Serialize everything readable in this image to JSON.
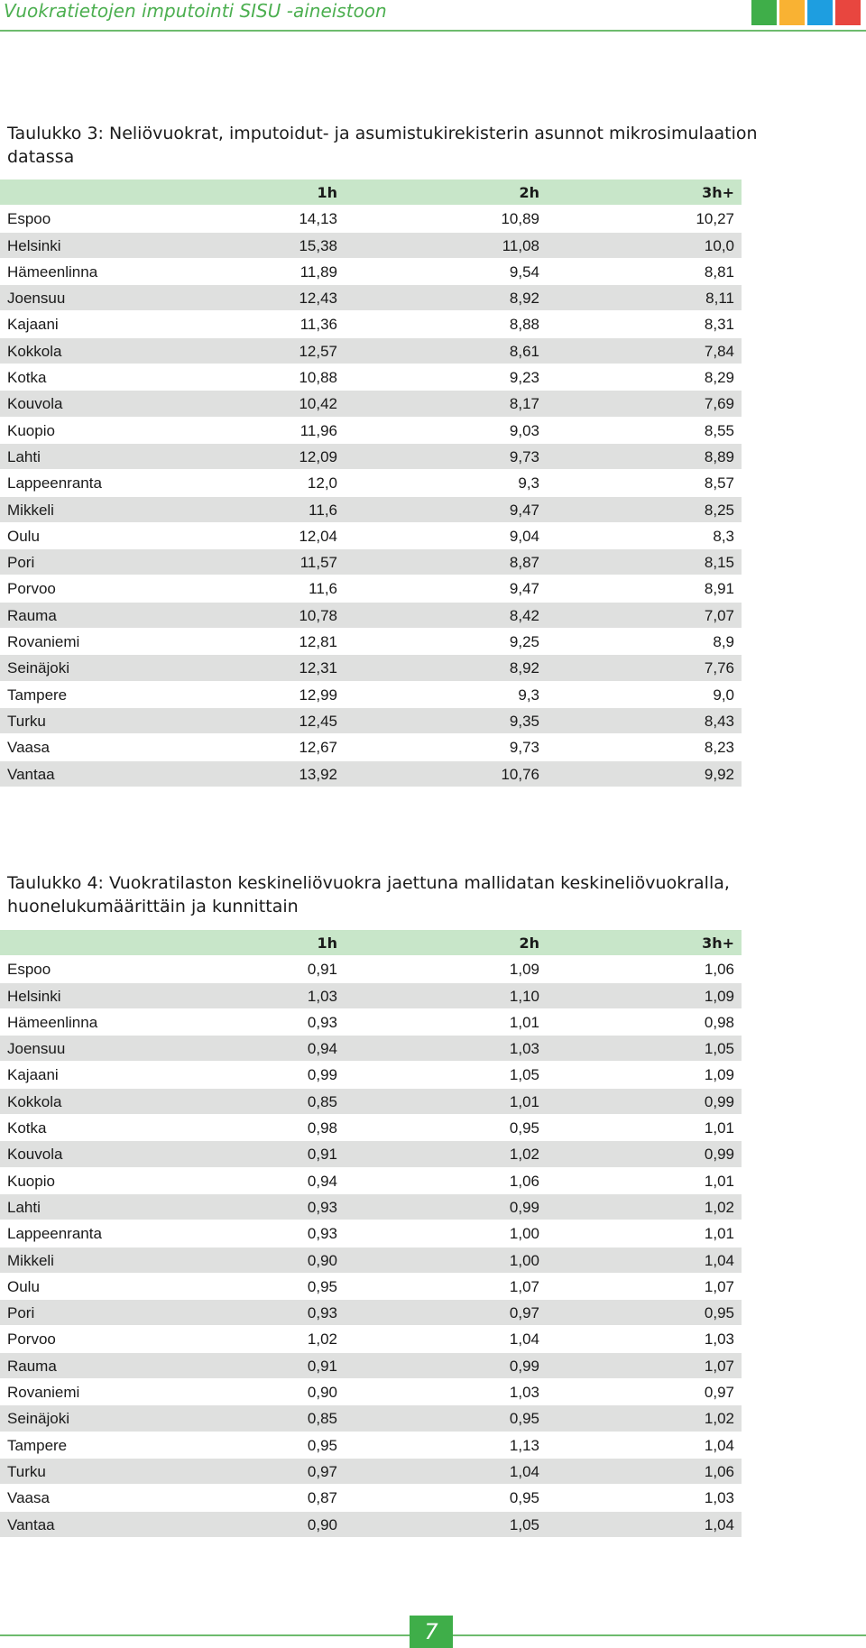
{
  "header": {
    "title": "Vuokratietojen imputointi SISU -aineistoon",
    "colors": [
      "#3fae49",
      "#f9b233",
      "#1e9ee0",
      "#e8463f"
    ]
  },
  "table3": {
    "title": "Taulukko 3: Neliövuokrat, imputoidut- ja asumistukirekisterin asunnot mikrosimulaation datassa",
    "columns": [
      "",
      "1h",
      "2h",
      "3h+"
    ],
    "rows": [
      [
        "Espoo",
        "14,13",
        "10,89",
        "10,27"
      ],
      [
        "Helsinki",
        "15,38",
        "11,08",
        "10,0"
      ],
      [
        "Hämeenlinna",
        "11,89",
        "9,54",
        "8,81"
      ],
      [
        "Joensuu",
        "12,43",
        "8,92",
        "8,11"
      ],
      [
        "Kajaani",
        "11,36",
        "8,88",
        "8,31"
      ],
      [
        "Kokkola",
        "12,57",
        "8,61",
        "7,84"
      ],
      [
        "Kotka",
        "10,88",
        "9,23",
        "8,29"
      ],
      [
        "Kouvola",
        "10,42",
        "8,17",
        "7,69"
      ],
      [
        "Kuopio",
        "11,96",
        "9,03",
        "8,55"
      ],
      [
        "Lahti",
        "12,09",
        "9,73",
        "8,89"
      ],
      [
        "Lappeenranta",
        "12,0",
        "9,3",
        "8,57"
      ],
      [
        "Mikkeli",
        "11,6",
        "9,47",
        "8,25"
      ],
      [
        "Oulu",
        "12,04",
        "9,04",
        "8,3"
      ],
      [
        "Pori",
        "11,57",
        "8,87",
        "8,15"
      ],
      [
        "Porvoo",
        "11,6",
        "9,47",
        "8,91"
      ],
      [
        "Rauma",
        "10,78",
        "8,42",
        "7,07"
      ],
      [
        "Rovaniemi",
        "12,81",
        "9,25",
        "8,9"
      ],
      [
        "Seinäjoki",
        "12,31",
        "8,92",
        "7,76"
      ],
      [
        "Tampere",
        "12,99",
        "9,3",
        "9,0"
      ],
      [
        "Turku",
        "12,45",
        "9,35",
        "8,43"
      ],
      [
        "Vaasa",
        "12,67",
        "9,73",
        "8,23"
      ],
      [
        "Vantaa",
        "13,92",
        "10,76",
        "9,92"
      ]
    ]
  },
  "table4": {
    "title": "Taulukko 4: Vuokratilaston keskineliövuokra jaettuna mallidatan keskineliövuokralla, huonelukumäärittäin ja kunnittain",
    "columns": [
      "",
      "1h",
      "2h",
      "3h+"
    ],
    "rows": [
      [
        "Espoo",
        "0,91",
        "1,09",
        "1,06"
      ],
      [
        "Helsinki",
        "1,03",
        "1,10",
        "1,09"
      ],
      [
        "Hämeenlinna",
        "0,93",
        "1,01",
        "0,98"
      ],
      [
        "Joensuu",
        "0,94",
        "1,03",
        "1,05"
      ],
      [
        "Kajaani",
        "0,99",
        "1,05",
        "1,09"
      ],
      [
        "Kokkola",
        "0,85",
        "1,01",
        "0,99"
      ],
      [
        "Kotka",
        "0,98",
        "0,95",
        "1,01"
      ],
      [
        "Kouvola",
        "0,91",
        "1,02",
        "0,99"
      ],
      [
        "Kuopio",
        "0,94",
        "1,06",
        "1,01"
      ],
      [
        "Lahti",
        "0,93",
        "0,99",
        "1,02"
      ],
      [
        "Lappeenranta",
        "0,93",
        "1,00",
        "1,01"
      ],
      [
        "Mikkeli",
        "0,90",
        "1,00",
        "1,04"
      ],
      [
        "Oulu",
        "0,95",
        "1,07",
        "1,07"
      ],
      [
        "Pori",
        "0,93",
        "0,97",
        "0,95"
      ],
      [
        "Porvoo",
        "1,02",
        "1,04",
        "1,03"
      ],
      [
        "Rauma",
        "0,91",
        "0,99",
        "1,07"
      ],
      [
        "Rovaniemi",
        "0,90",
        "1,03",
        "0,97"
      ],
      [
        "Seinäjoki",
        "0,85",
        "0,95",
        "1,02"
      ],
      [
        "Tampere",
        "0,95",
        "1,13",
        "1,04"
      ],
      [
        "Turku",
        "0,97",
        "1,04",
        "1,06"
      ],
      [
        "Vaasa",
        "0,87",
        "0,95",
        "1,03"
      ],
      [
        "Vantaa",
        "0,90",
        "1,05",
        "1,04"
      ]
    ]
  },
  "footer": {
    "page_number": "7"
  }
}
